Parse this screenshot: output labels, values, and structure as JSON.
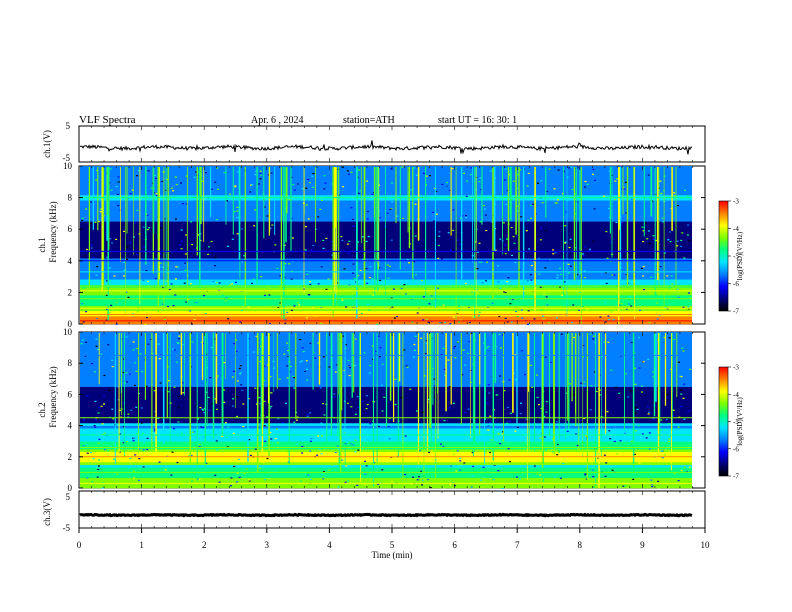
{
  "header": {
    "title": "VLF Spectra",
    "date": "Apr. 6 , 2024",
    "station": "station=ATH",
    "start": "start UT =  16: 30: 1"
  },
  "colors": {
    "colormap": [
      "#000000",
      "#00007a",
      "#0000ff",
      "#0080ff",
      "#00e5ff",
      "#00ff80",
      "#7fff00",
      "#ffff00",
      "#ff8000",
      "#ff0000",
      "#ffffff"
    ],
    "waveform": "#000000",
    "frame": "#000000"
  },
  "chart_data": [
    {
      "type": "line",
      "panel": "ch1-waveform",
      "ylabel": "ch.1(V)",
      "ylim": [
        -5,
        5
      ],
      "yticks": [
        "5",
        "-5"
      ],
      "description_values": {
        "mean_level_V": -1.0,
        "amplitude_V": 0.6
      }
    },
    {
      "type": "heatmap",
      "panel": "ch1-spectrogram",
      "ylabel": "ch.1",
      "ylabel2": "Frequency (kHz)",
      "ylim": [
        0,
        10
      ],
      "yticks": [
        "0",
        "2",
        "4",
        "6",
        "8",
        "10"
      ],
      "xlim": [
        0,
        10
      ],
      "colorbar": {
        "label": "log(PSD)(V²/Hz)",
        "range": [
          -7,
          -3
        ],
        "ticks": [
          "-3",
          "-4",
          "-5",
          "-6",
          "-7"
        ]
      },
      "bands_kHz": [
        {
          "freq": 0.2,
          "level": -3.4
        },
        {
          "freq": 0.6,
          "level": -3.8
        },
        {
          "freq": 1.0,
          "level": -4.3
        },
        {
          "freq": 1.6,
          "level": -4.6
        },
        {
          "freq": 2.1,
          "level": -4.2
        },
        {
          "freq": 2.4,
          "level": -4.8
        },
        {
          "freq": 3.3,
          "level": -5.6
        },
        {
          "freq": 4.0,
          "level": -6.5
        },
        {
          "freq": 4.6,
          "level": -6.6
        },
        {
          "freq": 8.0,
          "level": -5.3
        }
      ]
    },
    {
      "type": "heatmap",
      "panel": "ch2-spectrogram",
      "ylabel": "ch.2",
      "ylabel2": "Frequency (kHz)",
      "ylim": [
        0,
        10
      ],
      "yticks": [
        "0",
        "2",
        "4",
        "6",
        "8",
        "10"
      ],
      "xlim": [
        0,
        10
      ],
      "colorbar": {
        "label": "log(PSD)(V²/Hz)",
        "range": [
          -7,
          -3
        ],
        "ticks": [
          "-3",
          "-4",
          "-5",
          "-6",
          "-7"
        ]
      },
      "bands_kHz": [
        {
          "freq": 0.3,
          "level": -4.2
        },
        {
          "freq": 1.0,
          "level": -4.6
        },
        {
          "freq": 1.5,
          "level": -4.9
        },
        {
          "freq": 2.0,
          "level": -3.8
        },
        {
          "freq": 2.6,
          "level": -4.6
        },
        {
          "freq": 3.4,
          "level": -5.0
        },
        {
          "freq": 4.5,
          "level": -4.9
        },
        {
          "freq": 8.5,
          "level": -6.2
        }
      ]
    },
    {
      "type": "line",
      "panel": "ch3-waveform",
      "ylabel": "ch.3(V)",
      "ylim": [
        -5,
        5
      ],
      "yticks": [
        "5",
        "-5"
      ],
      "description_values": {
        "mean_level_V": -1.5,
        "amplitude_V": 0.15
      }
    }
  ],
  "xaxis": {
    "label": "Time  (min)",
    "xlim": [
      0,
      10
    ],
    "ticks": [
      "0",
      "1",
      "2",
      "3",
      "4",
      "5",
      "6",
      "7",
      "8",
      "9",
      "10"
    ]
  }
}
